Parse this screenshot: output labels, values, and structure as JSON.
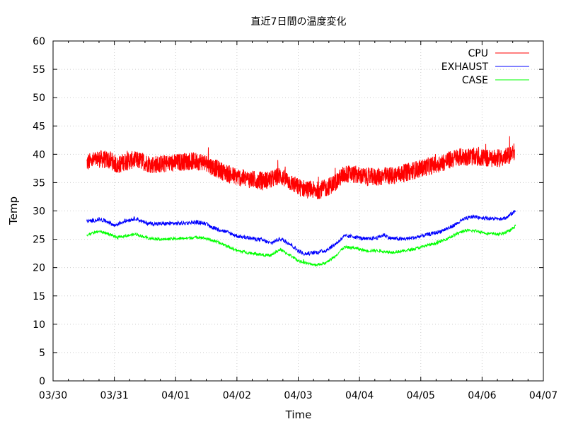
{
  "chart_data": {
    "type": "line",
    "title": "直近7日間の温度変化",
    "xlabel": "Time",
    "ylabel": "Temp",
    "x_ticks": [
      "03/30",
      "03/31",
      "04/01",
      "04/02",
      "04/03",
      "04/04",
      "04/05",
      "04/06",
      "04/07"
    ],
    "y_ticks": [
      "0",
      "5",
      "10",
      "15",
      "20",
      "25",
      "30",
      "35",
      "40",
      "45",
      "50",
      "55",
      "60"
    ],
    "ylim": [
      0,
      60
    ],
    "xlim_days": [
      0,
      8
    ],
    "grid": true,
    "legend_position": "top-right",
    "series": [
      {
        "name": "CPU",
        "color": "#ff0000",
        "noise": 1.6,
        "points": [
          [
            0.55,
            38.5
          ],
          [
            0.75,
            39.2
          ],
          [
            0.95,
            38.9
          ],
          [
            1.05,
            38.0
          ],
          [
            1.15,
            38.6
          ],
          [
            1.3,
            39.0
          ],
          [
            1.45,
            38.8
          ],
          [
            1.6,
            38.2
          ],
          [
            1.8,
            38.3
          ],
          [
            2.0,
            38.5
          ],
          [
            2.2,
            38.8
          ],
          [
            2.45,
            38.7
          ],
          [
            2.6,
            37.8
          ],
          [
            2.8,
            36.8
          ],
          [
            3.0,
            36.0
          ],
          [
            3.2,
            35.6
          ],
          [
            3.4,
            35.4
          ],
          [
            3.55,
            35.5
          ],
          [
            3.7,
            36.2
          ],
          [
            3.85,
            35.2
          ],
          [
            4.0,
            34.2
          ],
          [
            4.15,
            33.8
          ],
          [
            4.3,
            33.6
          ],
          [
            4.45,
            34.0
          ],
          [
            4.6,
            35.0
          ],
          [
            4.75,
            36.5
          ],
          [
            4.9,
            36.5
          ],
          [
            5.1,
            36.0
          ],
          [
            5.3,
            36.0
          ],
          [
            5.5,
            36.2
          ],
          [
            5.7,
            36.6
          ],
          [
            5.9,
            37.2
          ],
          [
            6.1,
            37.8
          ],
          [
            6.35,
            38.5
          ],
          [
            6.6,
            39.5
          ],
          [
            6.8,
            39.6
          ],
          [
            7.0,
            39.4
          ],
          [
            7.2,
            39.2
          ],
          [
            7.4,
            39.5
          ],
          [
            7.53,
            40.5
          ]
        ]
      },
      {
        "name": "EXHAUST",
        "color": "#0000ff",
        "noise": 0.35,
        "points": [
          [
            0.55,
            28.1
          ],
          [
            0.75,
            28.5
          ],
          [
            0.9,
            28.1
          ],
          [
            1.0,
            27.4
          ],
          [
            1.1,
            27.9
          ],
          [
            1.2,
            28.3
          ],
          [
            1.35,
            28.7
          ],
          [
            1.5,
            27.9
          ],
          [
            1.7,
            27.7
          ],
          [
            1.9,
            27.8
          ],
          [
            2.1,
            27.8
          ],
          [
            2.3,
            28.0
          ],
          [
            2.45,
            27.9
          ],
          [
            2.6,
            27.1
          ],
          [
            2.8,
            26.4
          ],
          [
            3.0,
            25.6
          ],
          [
            3.2,
            25.2
          ],
          [
            3.4,
            24.9
          ],
          [
            3.55,
            24.3
          ],
          [
            3.7,
            25.1
          ],
          [
            3.85,
            24.3
          ],
          [
            4.0,
            23.0
          ],
          [
            4.1,
            22.4
          ],
          [
            4.3,
            22.7
          ],
          [
            4.45,
            23.0
          ],
          [
            4.6,
            24.1
          ],
          [
            4.75,
            25.5
          ],
          [
            4.9,
            25.5
          ],
          [
            5.1,
            25.0
          ],
          [
            5.3,
            25.3
          ],
          [
            5.4,
            25.8
          ],
          [
            5.5,
            25.2
          ],
          [
            5.7,
            25.0
          ],
          [
            5.9,
            25.3
          ],
          [
            6.1,
            25.8
          ],
          [
            6.3,
            26.3
          ],
          [
            6.5,
            27.2
          ],
          [
            6.7,
            28.5
          ],
          [
            6.85,
            29.0
          ],
          [
            7.0,
            28.8
          ],
          [
            7.2,
            28.6
          ],
          [
            7.4,
            28.8
          ],
          [
            7.48,
            29.5
          ],
          [
            7.55,
            30.0
          ]
        ]
      },
      {
        "name": "CASE",
        "color": "#00ff00",
        "noise": 0.25,
        "points": [
          [
            0.55,
            25.8
          ],
          [
            0.75,
            26.4
          ],
          [
            0.9,
            26.0
          ],
          [
            1.05,
            25.3
          ],
          [
            1.2,
            25.6
          ],
          [
            1.35,
            25.9
          ],
          [
            1.55,
            25.2
          ],
          [
            1.8,
            25.0
          ],
          [
            2.0,
            25.1
          ],
          [
            2.2,
            25.2
          ],
          [
            2.4,
            25.4
          ],
          [
            2.6,
            24.8
          ],
          [
            2.8,
            24.0
          ],
          [
            3.0,
            23.0
          ],
          [
            3.2,
            22.6
          ],
          [
            3.4,
            22.3
          ],
          [
            3.55,
            22.1
          ],
          [
            3.7,
            23.2
          ],
          [
            3.85,
            22.3
          ],
          [
            4.0,
            21.2
          ],
          [
            4.15,
            20.7
          ],
          [
            4.3,
            20.5
          ],
          [
            4.45,
            20.8
          ],
          [
            4.6,
            22.0
          ],
          [
            4.75,
            23.6
          ],
          [
            4.9,
            23.5
          ],
          [
            5.1,
            23.0
          ],
          [
            5.3,
            23.0
          ],
          [
            5.5,
            22.7
          ],
          [
            5.7,
            22.9
          ],
          [
            5.9,
            23.3
          ],
          [
            6.1,
            23.9
          ],
          [
            6.3,
            24.5
          ],
          [
            6.5,
            25.5
          ],
          [
            6.7,
            26.5
          ],
          [
            6.9,
            26.5
          ],
          [
            7.1,
            26.0
          ],
          [
            7.3,
            25.9
          ],
          [
            7.45,
            26.5
          ],
          [
            7.55,
            27.4
          ]
        ]
      }
    ]
  }
}
